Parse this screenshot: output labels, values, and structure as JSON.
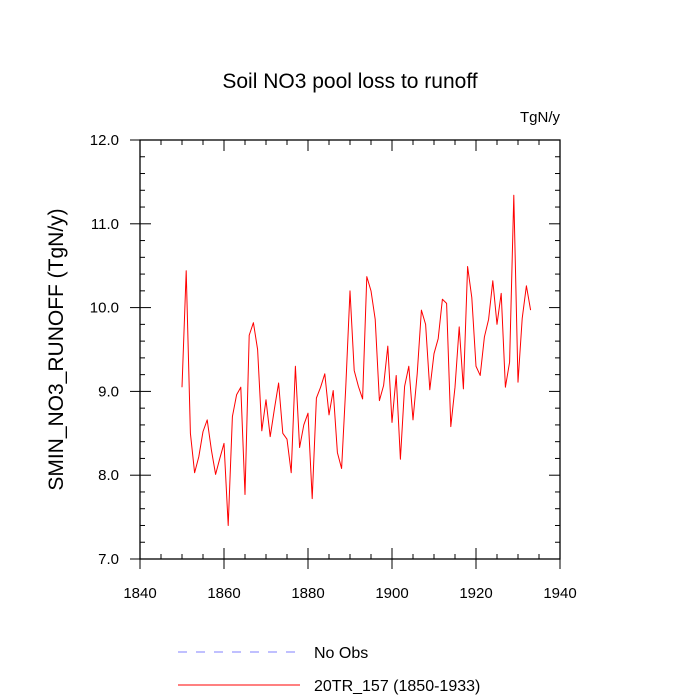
{
  "chart_data": {
    "type": "line",
    "title": "Soil NO3 pool loss to runoff",
    "units_label": "TgN/y",
    "ylabel": "SMIN_NO3_RUNOFF  (TgN/y)",
    "xlabel": "",
    "xlim": [
      1840,
      1940
    ],
    "ylim": [
      7.0,
      12.0
    ],
    "x_ticks": [
      1840,
      1860,
      1880,
      1900,
      1920,
      1940
    ],
    "y_ticks": [
      7.0,
      8.0,
      9.0,
      10.0,
      11.0,
      12.0
    ],
    "x_tick_labels": [
      "1840",
      "1860",
      "1880",
      "1900",
      "1920",
      "1940"
    ],
    "y_tick_labels": [
      "7.0",
      "8.0",
      "9.0",
      "10.0",
      "11.0",
      "12.0"
    ],
    "legend": [
      {
        "label": "No Obs",
        "color": "#8080ff",
        "style": "dashed"
      },
      {
        "label": "20TR_157 (1850-1933)",
        "color": "#ff0000",
        "style": "solid"
      }
    ],
    "series": [
      {
        "name": "20TR_157 (1850-1933)",
        "color": "#ff0000",
        "x": [
          1850,
          1851,
          1852,
          1853,
          1854,
          1855,
          1856,
          1857,
          1858,
          1859,
          1860,
          1861,
          1862,
          1863,
          1864,
          1865,
          1866,
          1867,
          1868,
          1869,
          1870,
          1871,
          1872,
          1873,
          1874,
          1875,
          1876,
          1877,
          1878,
          1879,
          1880,
          1881,
          1882,
          1883,
          1884,
          1885,
          1886,
          1887,
          1888,
          1889,
          1890,
          1891,
          1892,
          1893,
          1894,
          1895,
          1896,
          1897,
          1898,
          1899,
          1900,
          1901,
          1902,
          1903,
          1904,
          1905,
          1906,
          1907,
          1908,
          1909,
          1910,
          1911,
          1912,
          1913,
          1914,
          1915,
          1916,
          1917,
          1918,
          1919,
          1920,
          1921,
          1922,
          1923,
          1924,
          1925,
          1926,
          1927,
          1928,
          1929,
          1930,
          1931,
          1932,
          1933
        ],
        "values": [
          9.05,
          10.44,
          8.5,
          8.03,
          8.22,
          8.52,
          8.66,
          8.3,
          8.01,
          8.2,
          8.38,
          7.4,
          8.7,
          8.96,
          9.05,
          7.77,
          9.67,
          9.82,
          9.5,
          8.53,
          8.9,
          8.46,
          8.79,
          9.1,
          8.5,
          8.43,
          8.03,
          9.3,
          8.33,
          8.6,
          8.74,
          7.72,
          8.92,
          9.05,
          9.21,
          8.72,
          9.01,
          8.27,
          8.08,
          9.06,
          10.2,
          9.25,
          9.06,
          8.91,
          10.37,
          10.2,
          9.86,
          8.89,
          9.07,
          9.54,
          8.63,
          9.19,
          8.19,
          9.06,
          9.3,
          8.66,
          9.21,
          9.97,
          9.8,
          9.02,
          9.45,
          9.63,
          10.1,
          10.05,
          8.58,
          9.05,
          9.77,
          9.03,
          10.49,
          10.12,
          9.3,
          9.19,
          9.65,
          9.86,
          10.32,
          9.8,
          10.17,
          9.05,
          9.35,
          11.34,
          9.11,
          9.87,
          10.26,
          9.97
        ]
      }
    ]
  }
}
